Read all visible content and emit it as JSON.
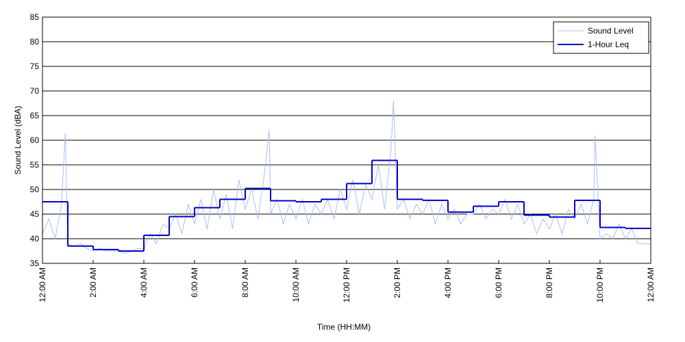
{
  "chart_data": {
    "type": "line",
    "xlabel": "Time (HH:MM)",
    "ylabel": "Sound Level (dBA)",
    "xlim": [
      0,
      24
    ],
    "xticks": [
      {
        "value": 0,
        "label": "12:00 AM"
      },
      {
        "value": 2,
        "label": "2:00 AM"
      },
      {
        "value": 4,
        "label": "4:00 AM"
      },
      {
        "value": 6,
        "label": "6:00 AM"
      },
      {
        "value": 8,
        "label": "8:00 AM"
      },
      {
        "value": 10,
        "label": "10:00 AM"
      },
      {
        "value": 12,
        "label": "12:00 PM"
      },
      {
        "value": 14,
        "label": "2:00 PM"
      },
      {
        "value": 16,
        "label": "4:00 PM"
      },
      {
        "value": 18,
        "label": "6:00 PM"
      },
      {
        "value": 20,
        "label": "8:00 PM"
      },
      {
        "value": 22,
        "label": "10:00 PM"
      },
      {
        "value": 24,
        "label": "12:00 AM"
      }
    ],
    "ylim": [
      35,
      85
    ],
    "yticks": [
      35,
      40,
      45,
      50,
      55,
      60,
      65,
      70,
      75,
      80,
      85
    ],
    "grid": true,
    "legend": "upper right",
    "series": [
      {
        "name": "Sound Level",
        "color": "#a9bff2",
        "style": "line",
        "x": [
          0,
          0.25,
          0.5,
          0.75,
          0.9,
          1,
          1.25,
          1.5,
          1.75,
          2,
          2.25,
          2.5,
          2.75,
          3,
          3.25,
          3.5,
          3.75,
          4,
          4.25,
          4.5,
          4.75,
          5,
          5.25,
          5.5,
          5.75,
          6,
          6.25,
          6.5,
          6.75,
          7,
          7.25,
          7.5,
          7.75,
          8,
          8.25,
          8.5,
          8.75,
          8.95,
          9,
          9.25,
          9.5,
          9.75,
          10,
          10.25,
          10.5,
          10.75,
          11,
          11.25,
          11.5,
          11.75,
          12,
          12.25,
          12.5,
          12.75,
          13,
          13.25,
          13.5,
          13.75,
          13.85,
          14,
          14.25,
          14.5,
          14.75,
          15,
          15.25,
          15.5,
          15.75,
          16,
          16.25,
          16.5,
          16.75,
          17,
          17.25,
          17.5,
          17.75,
          18,
          18.25,
          18.5,
          18.75,
          19,
          19.25,
          19.5,
          19.75,
          20,
          20.25,
          20.5,
          20.75,
          21,
          21.25,
          21.5,
          21.75,
          21.8,
          22,
          22.25,
          22.5,
          22.75,
          23,
          23.25,
          23.5,
          23.75,
          24
        ],
        "values": [
          41,
          44,
          40,
          47,
          61.5,
          39,
          38.5,
          39,
          38,
          37.5,
          38,
          37.5,
          37.5,
          37.5,
          37,
          37.5,
          38,
          38,
          41,
          39,
          43,
          42,
          45,
          41,
          47,
          43,
          48,
          42,
          50,
          44,
          49,
          42,
          52,
          46,
          50,
          44,
          53,
          62,
          45,
          48,
          43,
          47,
          44,
          48,
          43,
          47,
          45,
          48,
          44,
          50,
          46,
          52,
          45,
          51,
          48,
          55,
          46,
          58,
          68,
          46,
          48,
          44,
          47,
          45,
          48,
          43,
          47,
          44,
          46,
          43,
          45,
          45,
          47,
          44,
          46,
          45,
          48,
          44,
          47,
          43,
          45,
          41,
          44,
          42,
          45,
          41,
          46,
          44,
          47,
          43,
          48,
          61,
          40,
          41,
          40,
          43,
          40,
          42,
          39,
          39,
          39
        ]
      },
      {
        "name": "1-Hour Leq",
        "color": "#0000cc",
        "style": "step",
        "x": [
          0,
          1,
          2,
          3,
          4,
          5,
          6,
          7,
          8,
          9,
          10,
          11,
          12,
          13,
          14,
          15,
          16,
          17,
          18,
          19,
          20,
          21,
          22,
          23
        ],
        "values": [
          47.5,
          38.5,
          37.8,
          37.5,
          40.7,
          44.5,
          46.3,
          48.0,
          50.2,
          47.7,
          47.5,
          48.0,
          51.2,
          55.9,
          48.0,
          47.8,
          45.4,
          46.6,
          47.5,
          44.8,
          44.4,
          47.8,
          42.3,
          42.1
        ]
      }
    ]
  }
}
